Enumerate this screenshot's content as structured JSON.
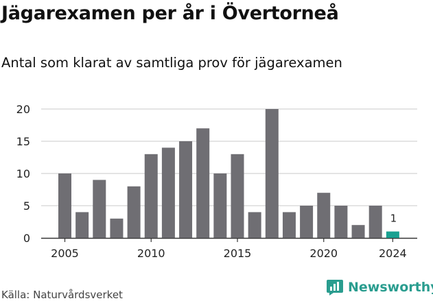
{
  "header": {
    "title": "Jägarexamen per år i Övertorneå",
    "subtitle": "Antal som klarat av samtliga prov för jägarexamen"
  },
  "footer": {
    "source": "Källa: Naturvårdsverket",
    "brand": "Newsworthy"
  },
  "colors": {
    "bar": "#6f6e73",
    "highlight": "#1aa191",
    "grid": "#d4d4d4",
    "axis": "#333333",
    "brand": "#2a9d8f"
  },
  "icons": {
    "brand": "chart-bubble-icon"
  },
  "chart_data": {
    "type": "bar",
    "title": "Jägarexamen per år i Övertorneå",
    "subtitle": "Antal som klarat av samtliga prov för jägarexamen",
    "categories": [
      2005,
      2006,
      2007,
      2008,
      2009,
      2010,
      2011,
      2012,
      2013,
      2014,
      2015,
      2016,
      2017,
      2018,
      2019,
      2020,
      2021,
      2022,
      2023,
      2024
    ],
    "values": [
      10,
      4,
      9,
      3,
      8,
      13,
      14,
      15,
      17,
      10,
      13,
      4,
      20,
      4,
      5,
      7,
      5,
      2,
      5,
      1
    ],
    "highlight_index": 19,
    "data_labels": [
      {
        "index": 19,
        "text": "1"
      }
    ],
    "x_ticks": [
      2005,
      2010,
      2015,
      2020,
      2024
    ],
    "y_ticks": [
      0,
      5,
      10,
      15,
      20
    ],
    "ylim": [
      0,
      20
    ],
    "grid": true,
    "xlabel": "",
    "ylabel": ""
  }
}
